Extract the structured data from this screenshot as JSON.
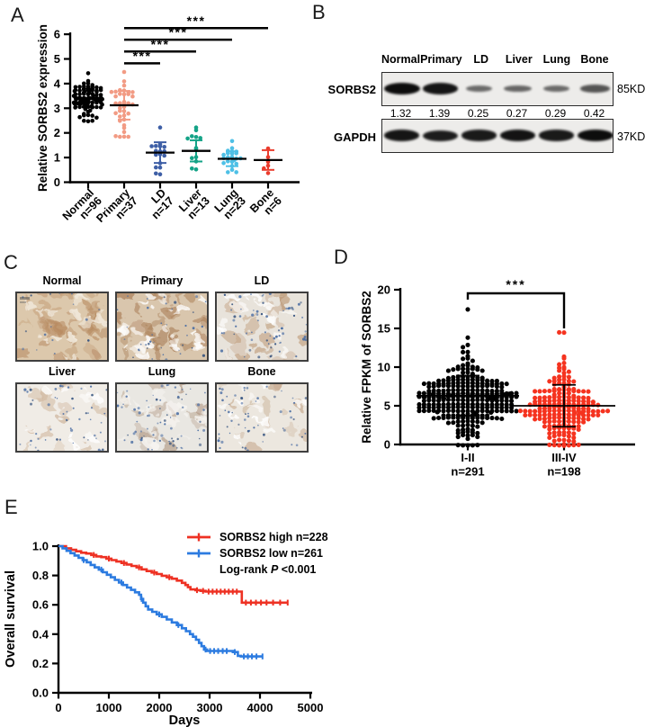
{
  "panel_letters": {
    "a": "A",
    "b": "B",
    "c": "C",
    "d": "D",
    "e": "E"
  },
  "chart_data": [
    {
      "id": "panel_a",
      "type": "scatter",
      "subtype": "column-dot-plot",
      "ylabel": "Relative SORBS2 expression",
      "yticks": [
        0,
        1,
        2,
        3,
        4,
        5,
        6
      ],
      "ylim": [
        0,
        6
      ],
      "groups": [
        {
          "label": "Normal",
          "n_label": "n=96",
          "n": 96,
          "color": "#000000",
          "mean": 3.42,
          "sd": 0.38,
          "min": 2.55,
          "max": 4.5
        },
        {
          "label": "Primary",
          "n_label": "n=37",
          "n": 37,
          "color": "#F29B84",
          "mean": 3.12,
          "sd": 0.58,
          "min": 1.9,
          "max": 4.55
        },
        {
          "label": "LD",
          "n_label": "n=17",
          "n": 17,
          "color": "#3E5FA6",
          "mean": 1.2,
          "sd": 0.42,
          "min": 0.4,
          "max": 2.3
        },
        {
          "label": "Liver",
          "n_label": "n=13",
          "n": 13,
          "color": "#14A387",
          "mean": 1.27,
          "sd": 0.43,
          "min": 0.6,
          "max": 2.3
        },
        {
          "label": "Lung",
          "n_label": "n=23",
          "n": 23,
          "color": "#4EC0E6",
          "mean": 0.95,
          "sd": 0.3,
          "min": 0.45,
          "max": 1.75
        },
        {
          "label": "Bone",
          "n_label": "n=6",
          "n": 6,
          "color": "#EA3C2D",
          "mean": 0.9,
          "sd": 0.4,
          "min": 0.45,
          "max": 1.45
        }
      ],
      "significance": [
        {
          "from": 1,
          "to": 2,
          "label": "***",
          "level": 4.82
        },
        {
          "from": 1,
          "to": 3,
          "label": "***",
          "level": 5.3
        },
        {
          "from": 1,
          "to": 4,
          "label": "***",
          "level": 5.78
        },
        {
          "from": 1,
          "to": 5,
          "label": "***",
          "level": 6.25
        }
      ]
    },
    {
      "id": "panel_d",
      "type": "scatter",
      "subtype": "column-dot-plot",
      "ylabel": "Relative FPKM of SORBS2",
      "yticks": [
        0,
        5,
        10,
        15,
        20
      ],
      "ylim": [
        0,
        20
      ],
      "groups": [
        {
          "label": "I-II",
          "n_label": "n=291",
          "n": 291,
          "color": "#000000",
          "mean": 6.3,
          "sd": 2.6,
          "min": 0.2,
          "max": 17.8
        },
        {
          "label": "III-IV",
          "n_label": "n=198",
          "n": 198,
          "color": "#F5331F",
          "mean": 5.0,
          "sd": 2.7,
          "min": 0.2,
          "max": 14.8
        }
      ],
      "significance": {
        "from": 0,
        "to": 1,
        "label": "***"
      }
    },
    {
      "id": "panel_e",
      "type": "line",
      "subtype": "kaplan-meier",
      "xlabel": "Days",
      "ylabel": "Overall survival",
      "xticks": [
        0,
        1000,
        2000,
        3000,
        4000,
        5000
      ],
      "ytick_labels": [
        "0.0",
        "0.2",
        "0.4",
        "0.6",
        "0.8",
        "1.0"
      ],
      "xlim": [
        0,
        5000
      ],
      "ylim": [
        0,
        1
      ],
      "series": [
        {
          "name": "SORBS2 high n=228",
          "color": "#EE3123",
          "points": [
            [
              0,
              1
            ],
            [
              150,
              0.985
            ],
            [
              250,
              0.975
            ],
            [
              350,
              0.965
            ],
            [
              450,
              0.955
            ],
            [
              550,
              0.95
            ],
            [
              650,
              0.94
            ],
            [
              750,
              0.93
            ],
            [
              850,
              0.925
            ],
            [
              950,
              0.915
            ],
            [
              1050,
              0.905
            ],
            [
              1150,
              0.895
            ],
            [
              1250,
              0.885
            ],
            [
              1350,
              0.875
            ],
            [
              1450,
              0.865
            ],
            [
              1550,
              0.855
            ],
            [
              1650,
              0.842
            ],
            [
              1750,
              0.83
            ],
            [
              1850,
              0.82
            ],
            [
              1950,
              0.81
            ],
            [
              2050,
              0.798
            ],
            [
              2150,
              0.788
            ],
            [
              2250,
              0.778
            ],
            [
              2350,
              0.765
            ],
            [
              2450,
              0.75
            ],
            [
              2520,
              0.735
            ],
            [
              2570,
              0.72
            ],
            [
              2620,
              0.705
            ],
            [
              2720,
              0.7
            ],
            [
              2820,
              0.695
            ],
            [
              2920,
              0.69
            ],
            [
              3600,
              0.69
            ],
            [
              3640,
              0.615
            ],
            [
              4550,
              0.615
            ]
          ],
          "censor_days": [
            700,
            1000,
            1300,
            1600,
            1900,
            2200,
            2750,
            2870,
            2980,
            3060,
            3140,
            3220,
            3300,
            3380,
            3460,
            3540,
            3720,
            3820,
            3920,
            4020,
            4130,
            4260,
            4400,
            4550
          ]
        },
        {
          "name": "SORBS2 low n=261",
          "color": "#2C7BE0",
          "points": [
            [
              0,
              1
            ],
            [
              80,
              0.985
            ],
            [
              160,
              0.968
            ],
            [
              240,
              0.952
            ],
            [
              320,
              0.936
            ],
            [
              400,
              0.92
            ],
            [
              480,
              0.905
            ],
            [
              560,
              0.89
            ],
            [
              640,
              0.872
            ],
            [
              720,
              0.855
            ],
            [
              800,
              0.84
            ],
            [
              880,
              0.822
            ],
            [
              960,
              0.805
            ],
            [
              1040,
              0.788
            ],
            [
              1120,
              0.77
            ],
            [
              1200,
              0.752
            ],
            [
              1280,
              0.735
            ],
            [
              1360,
              0.718
            ],
            [
              1440,
              0.702
            ],
            [
              1520,
              0.685
            ],
            [
              1600,
              0.668
            ],
            [
              1640,
              0.64
            ],
            [
              1680,
              0.615
            ],
            [
              1730,
              0.59
            ],
            [
              1780,
              0.568
            ],
            [
              1860,
              0.552
            ],
            [
              1950,
              0.535
            ],
            [
              2050,
              0.518
            ],
            [
              2150,
              0.5
            ],
            [
              2250,
              0.48
            ],
            [
              2350,
              0.462
            ],
            [
              2450,
              0.44
            ],
            [
              2530,
              0.42
            ],
            [
              2610,
              0.4
            ],
            [
              2670,
              0.382
            ],
            [
              2730,
              0.362
            ],
            [
              2790,
              0.34
            ],
            [
              2840,
              0.318
            ],
            [
              2890,
              0.295
            ],
            [
              2950,
              0.285
            ],
            [
              3400,
              0.285
            ],
            [
              3460,
              0.278
            ],
            [
              3560,
              0.252
            ],
            [
              3620,
              0.248
            ],
            [
              4050,
              0.248
            ]
          ],
          "censor_days": [
            500,
            850,
            1250,
            1650,
            2000,
            2380,
            2920,
            3010,
            3090,
            3170,
            3260,
            3340,
            3500,
            3680,
            3760,
            3840,
            3930,
            4050
          ]
        }
      ],
      "annotation": {
        "before_p": "Log-rank ",
        "p": "P",
        "after_p": " <0.001"
      }
    }
  ],
  "western_blot": {
    "lanes": [
      "Normal",
      "Primary",
      "LD",
      "Liver",
      "Lung",
      "Bone"
    ],
    "rows": [
      {
        "label": "SORBS2",
        "size_label": "85KD",
        "values": [
          "1.32",
          "1.39",
          "0.25",
          "0.27",
          "0.29",
          "0.42"
        ],
        "band_intensities": [
          1.0,
          0.93,
          0.28,
          0.31,
          0.28,
          0.44
        ]
      },
      {
        "label": "GAPDH",
        "size_label": "37KD",
        "band_intensities": [
          0.93,
          0.88,
          0.9,
          0.95,
          0.9,
          1.0
        ]
      }
    ]
  },
  "ihc_panel": {
    "images": [
      {
        "label": "Normal",
        "base": "#dcc8ac",
        "blob": "#b6895f",
        "blob_n": 42,
        "hole": "#f4eee3",
        "hole_n": 16,
        "nuclei": 16,
        "seed": 11
      },
      {
        "label": "Primary",
        "base": "#d9c6ad",
        "blob": "#a17148",
        "blob_n": 36,
        "hole": "#ffffff",
        "hole_n": 24,
        "nuclei": 38,
        "seed": 22
      },
      {
        "label": "LD",
        "base": "#e8e3db",
        "blob": "#b8916c",
        "blob_n": 20,
        "hole": "#ffffff",
        "hole_n": 14,
        "nuclei": 66,
        "seed": 33
      },
      {
        "label": "Liver",
        "base": "#f0ece6",
        "blob": "#c8a98b",
        "blob_n": 13,
        "hole": "#ffffff",
        "hole_n": 10,
        "nuclei": 52,
        "seed": 44
      },
      {
        "label": "Lung",
        "base": "#e9e7e2",
        "blob": "#a3846a",
        "blob_n": 16,
        "hole": "#f6f4f0",
        "hole_n": 18,
        "nuclei": 72,
        "seed": 55
      },
      {
        "label": "Bone",
        "base": "#ece7df",
        "blob": "#bf9f80",
        "blob_n": 15,
        "hole": "#ffffff",
        "hole_n": 12,
        "nuclei": 58,
        "seed": 66
      }
    ]
  }
}
